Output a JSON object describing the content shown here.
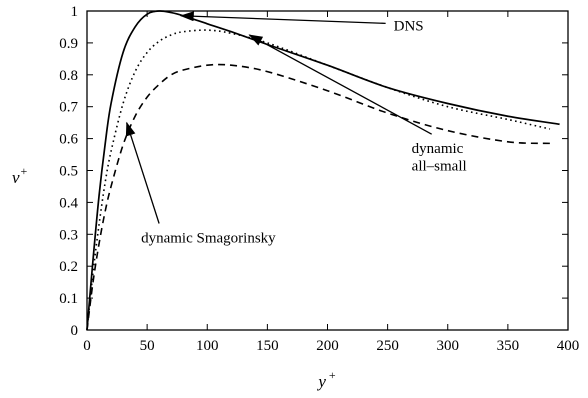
{
  "chart_data": {
    "type": "line",
    "title": "",
    "xlabel": "y",
    "xlabel_sup": "+",
    "ylabel": "v",
    "ylabel_sup": "+",
    "xlim": [
      0,
      400
    ],
    "ylim": [
      0,
      1
    ],
    "xticks": [
      0,
      50,
      100,
      150,
      200,
      250,
      300,
      350,
      400
    ],
    "yticks": [
      0,
      0.1,
      0.2,
      0.3,
      0.4,
      0.5,
      0.6,
      0.7,
      0.8,
      0.9,
      1
    ],
    "ytick_labels": [
      "0",
      "0.1",
      "0.2",
      "0.3",
      "0.4",
      "0.5",
      "0.6",
      "0.7",
      "0.8",
      "0.9",
      "1"
    ],
    "grid": false,
    "legend": "none",
    "series": [
      {
        "name": "DNS",
        "style": "solid",
        "x": [
          0,
          5,
          10,
          15,
          20,
          30,
          40,
          50,
          60,
          70,
          80,
          100,
          120,
          150,
          200,
          250,
          300,
          350,
          393
        ],
        "y": [
          0,
          0.22,
          0.42,
          0.58,
          0.71,
          0.87,
          0.95,
          0.99,
          1.0,
          0.995,
          0.985,
          0.96,
          0.935,
          0.895,
          0.83,
          0.76,
          0.71,
          0.67,
          0.645
        ]
      },
      {
        "name": "dynamic all-small",
        "style": "dotted",
        "x": [
          0,
          5,
          10,
          15,
          20,
          30,
          40,
          50,
          60,
          70,
          80,
          100,
          120,
          150,
          200,
          250,
          300,
          350,
          385
        ],
        "y": [
          0,
          0.18,
          0.33,
          0.46,
          0.56,
          0.71,
          0.81,
          0.87,
          0.905,
          0.925,
          0.935,
          0.94,
          0.93,
          0.9,
          0.83,
          0.76,
          0.7,
          0.66,
          0.63
        ]
      },
      {
        "name": "dynamic Smagorinsky",
        "style": "dashed",
        "x": [
          0,
          5,
          10,
          15,
          20,
          30,
          40,
          50,
          60,
          70,
          80,
          100,
          120,
          150,
          200,
          250,
          300,
          350,
          385
        ],
        "y": [
          0,
          0.15,
          0.27,
          0.37,
          0.45,
          0.58,
          0.67,
          0.73,
          0.77,
          0.8,
          0.815,
          0.83,
          0.83,
          0.81,
          0.75,
          0.68,
          0.625,
          0.59,
          0.585
        ]
      }
    ],
    "annotations": [
      {
        "text": "DNS",
        "x": 255,
        "y": 0.955,
        "arrow_to": [
          78,
          0.985
        ]
      },
      {
        "text": "dynamic",
        "x": 270,
        "y": 0.57,
        "arrow_to": [
          135,
          0.925
        ]
      },
      {
        "text": "all–small",
        "x": 270,
        "y": 0.515
      },
      {
        "text": "dynamic Smagorinsky",
        "x": 45,
        "y": 0.29,
        "arrow_to": [
          33,
          0.65
        ]
      }
    ]
  }
}
